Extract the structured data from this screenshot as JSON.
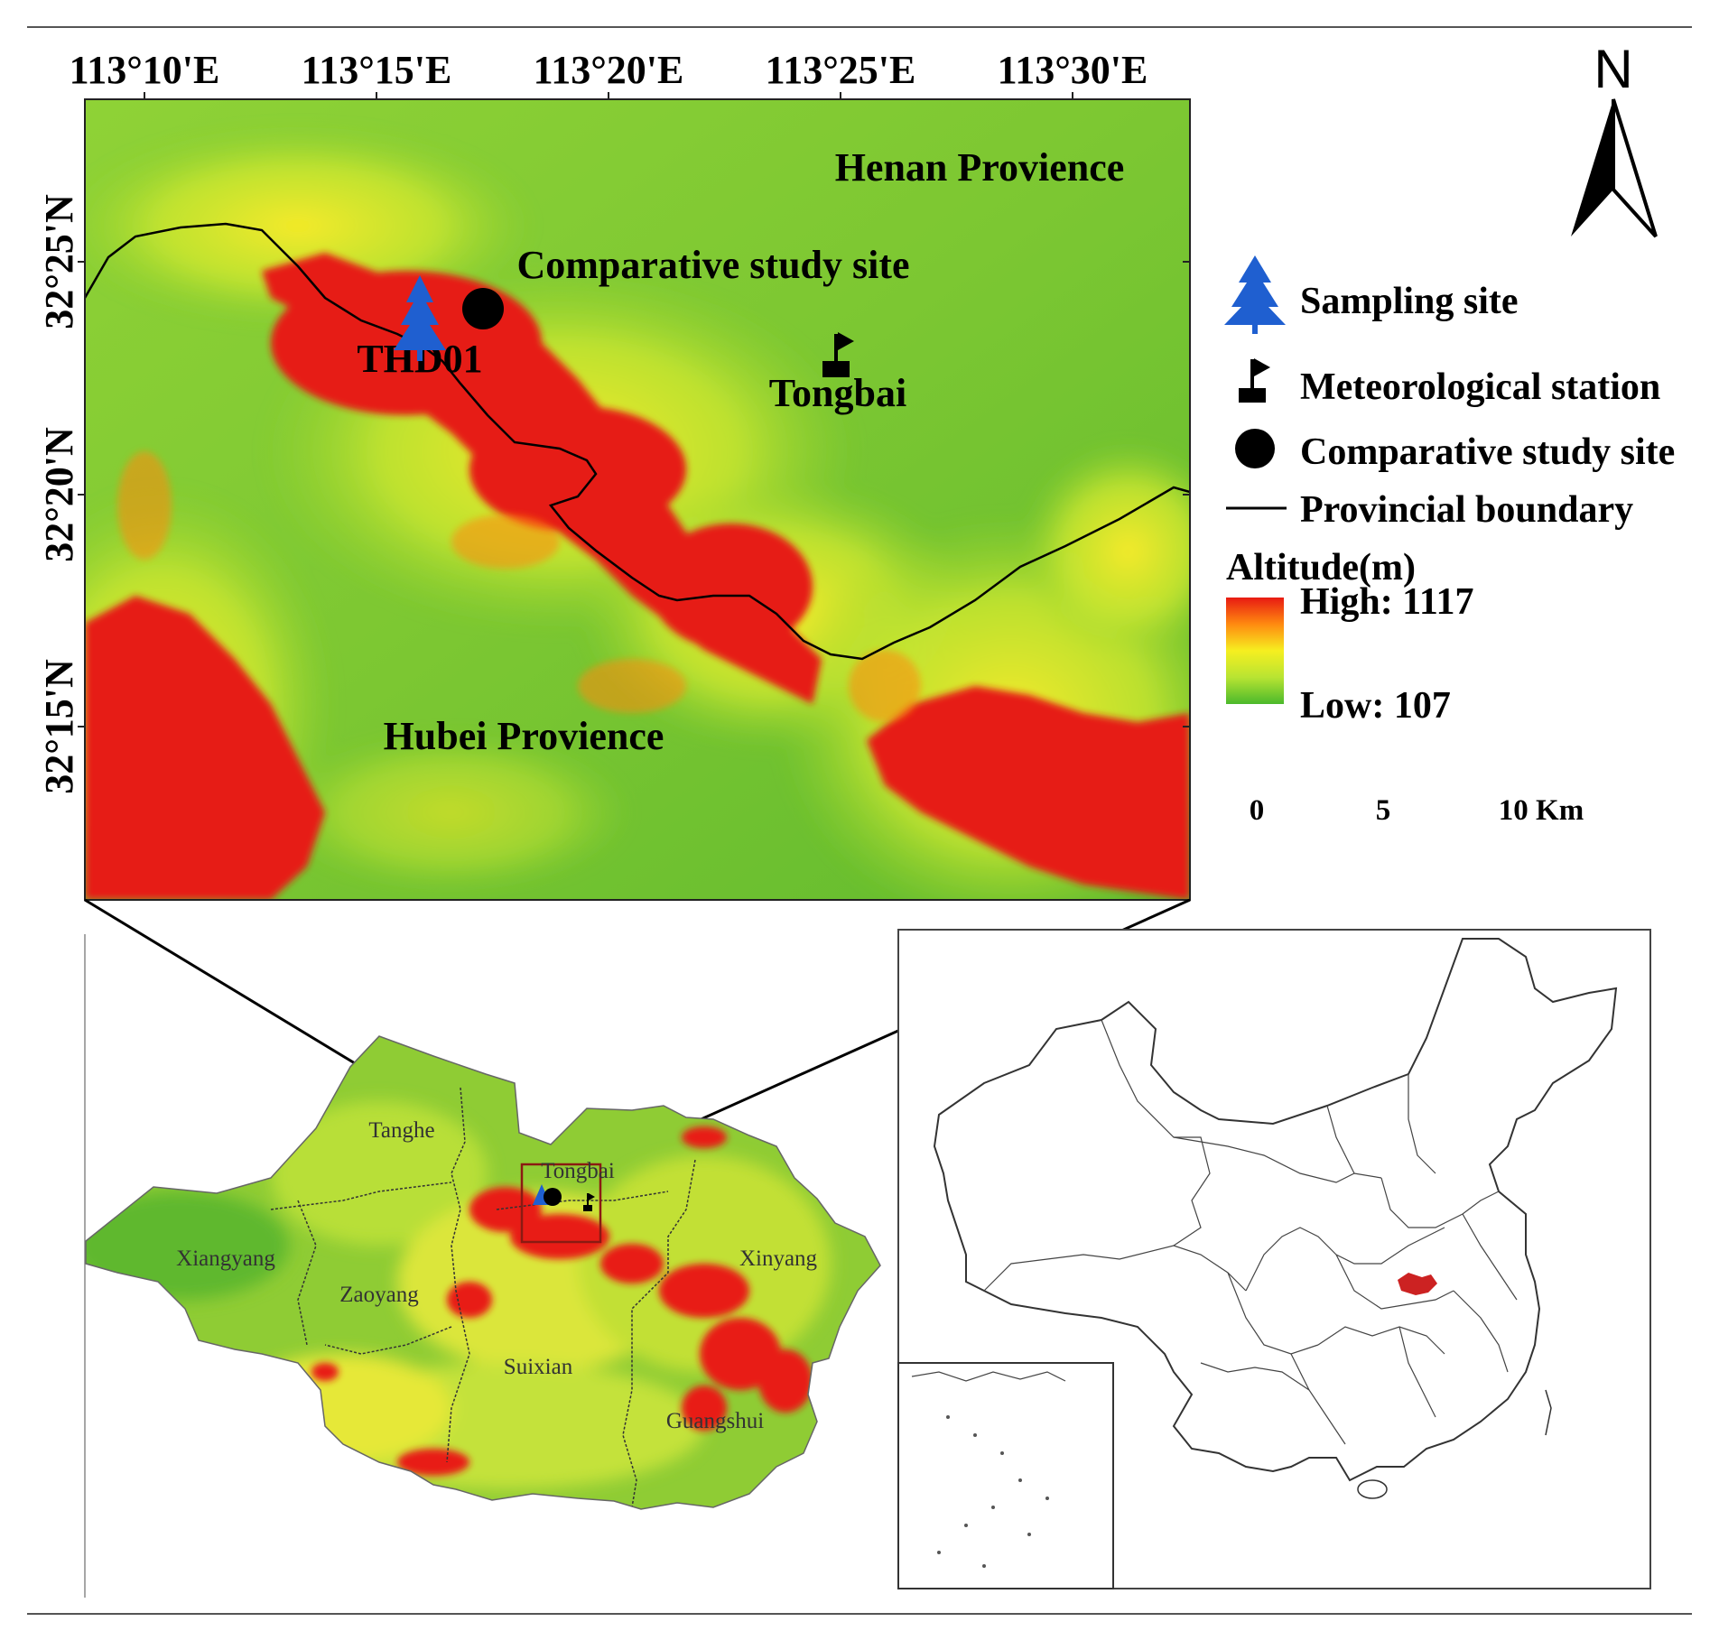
{
  "main_map": {
    "lon_ticks": [
      "113°10'E",
      "113°15'E",
      "113°20'E",
      "113°25'E",
      "113°30'E"
    ],
    "lat_ticks": [
      "32°25'N",
      "32°20'N",
      "32°15'N"
    ],
    "labels": {
      "henan": "Henan Provience",
      "hubei": "Hubei Provience",
      "comparative": "Comparative study site",
      "sample_id": "THD01",
      "station": "Tongbai"
    }
  },
  "north_arrow": {
    "letter": "N"
  },
  "legend": {
    "items": [
      {
        "icon": "tree-icon",
        "color": "#1f5fd0",
        "label": "Sampling site"
      },
      {
        "icon": "flag-icon",
        "color": "#000000",
        "label": "Meteorological station"
      },
      {
        "icon": "circle-icon",
        "color": "#000000",
        "label": "Comparative study site"
      },
      {
        "icon": "line-icon",
        "color": "#000000",
        "label": "Provincial boundary"
      }
    ],
    "altitude": {
      "title": "Altitude(m)",
      "high": "High: 1117",
      "low": "Low: 107",
      "colors": [
        "#e81a12",
        "#ff8a10",
        "#f6ef20",
        "#c6ea30",
        "#4bb92c"
      ]
    },
    "scale": {
      "zero": "0",
      "mid": "5",
      "end": "10 Km"
    }
  },
  "regional_map": {
    "counties": [
      "Tanghe",
      "Tongbai",
      "Xiangyang",
      "Zaoyang",
      "Xinyang",
      "Suixian",
      "Guangshui"
    ]
  },
  "china_map": {
    "highlight_color": "#cc2222"
  }
}
